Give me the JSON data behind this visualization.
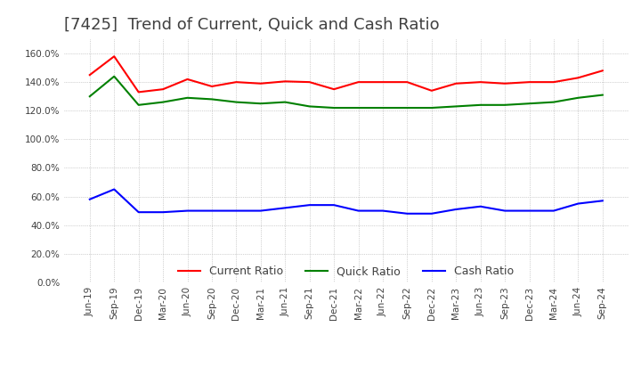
{
  "title": "[7425]  Trend of Current, Quick and Cash Ratio",
  "title_fontsize": 13,
  "title_color": "#404040",
  "background_color": "#ffffff",
  "plot_background": "#ffffff",
  "grid_color": "#aaaaaa",
  "xlabels": [
    "Jun-19",
    "Sep-19",
    "Dec-19",
    "Mar-20",
    "Jun-20",
    "Sep-20",
    "Dec-20",
    "Mar-21",
    "Jun-21",
    "Sep-21",
    "Dec-21",
    "Mar-22",
    "Jun-22",
    "Sep-22",
    "Dec-22",
    "Mar-23",
    "Jun-23",
    "Sep-23",
    "Dec-23",
    "Mar-24",
    "Jun-24",
    "Sep-24"
  ],
  "ylim": [
    0.0,
    170.0
  ],
  "yticks": [
    0.0,
    20.0,
    40.0,
    60.0,
    80.0,
    100.0,
    120.0,
    140.0,
    160.0
  ],
  "current_ratio": [
    145.0,
    158.0,
    133.0,
    135.0,
    142.0,
    137.0,
    140.0,
    139.0,
    140.5,
    140.0,
    135.0,
    140.0,
    140.0,
    140.0,
    134.0,
    139.0,
    140.0,
    139.0,
    140.0,
    140.0,
    143.0,
    148.0
  ],
  "quick_ratio": [
    130.0,
    144.0,
    124.0,
    126.0,
    129.0,
    128.0,
    126.0,
    125.0,
    126.0,
    123.0,
    122.0,
    122.0,
    122.0,
    122.0,
    122.0,
    123.0,
    124.0,
    124.0,
    125.0,
    126.0,
    129.0,
    131.0
  ],
  "cash_ratio": [
    58.0,
    65.0,
    49.0,
    49.0,
    50.0,
    50.0,
    50.0,
    50.0,
    52.0,
    54.0,
    54.0,
    50.0,
    50.0,
    48.0,
    48.0,
    51.0,
    53.0,
    50.0,
    50.0,
    50.0,
    55.0,
    57.0
  ],
  "current_color": "#ff0000",
  "quick_color": "#008000",
  "cash_color": "#0000ff",
  "line_width": 1.5,
  "legend_labels": [
    "Current Ratio",
    "Quick Ratio",
    "Cash Ratio"
  ]
}
